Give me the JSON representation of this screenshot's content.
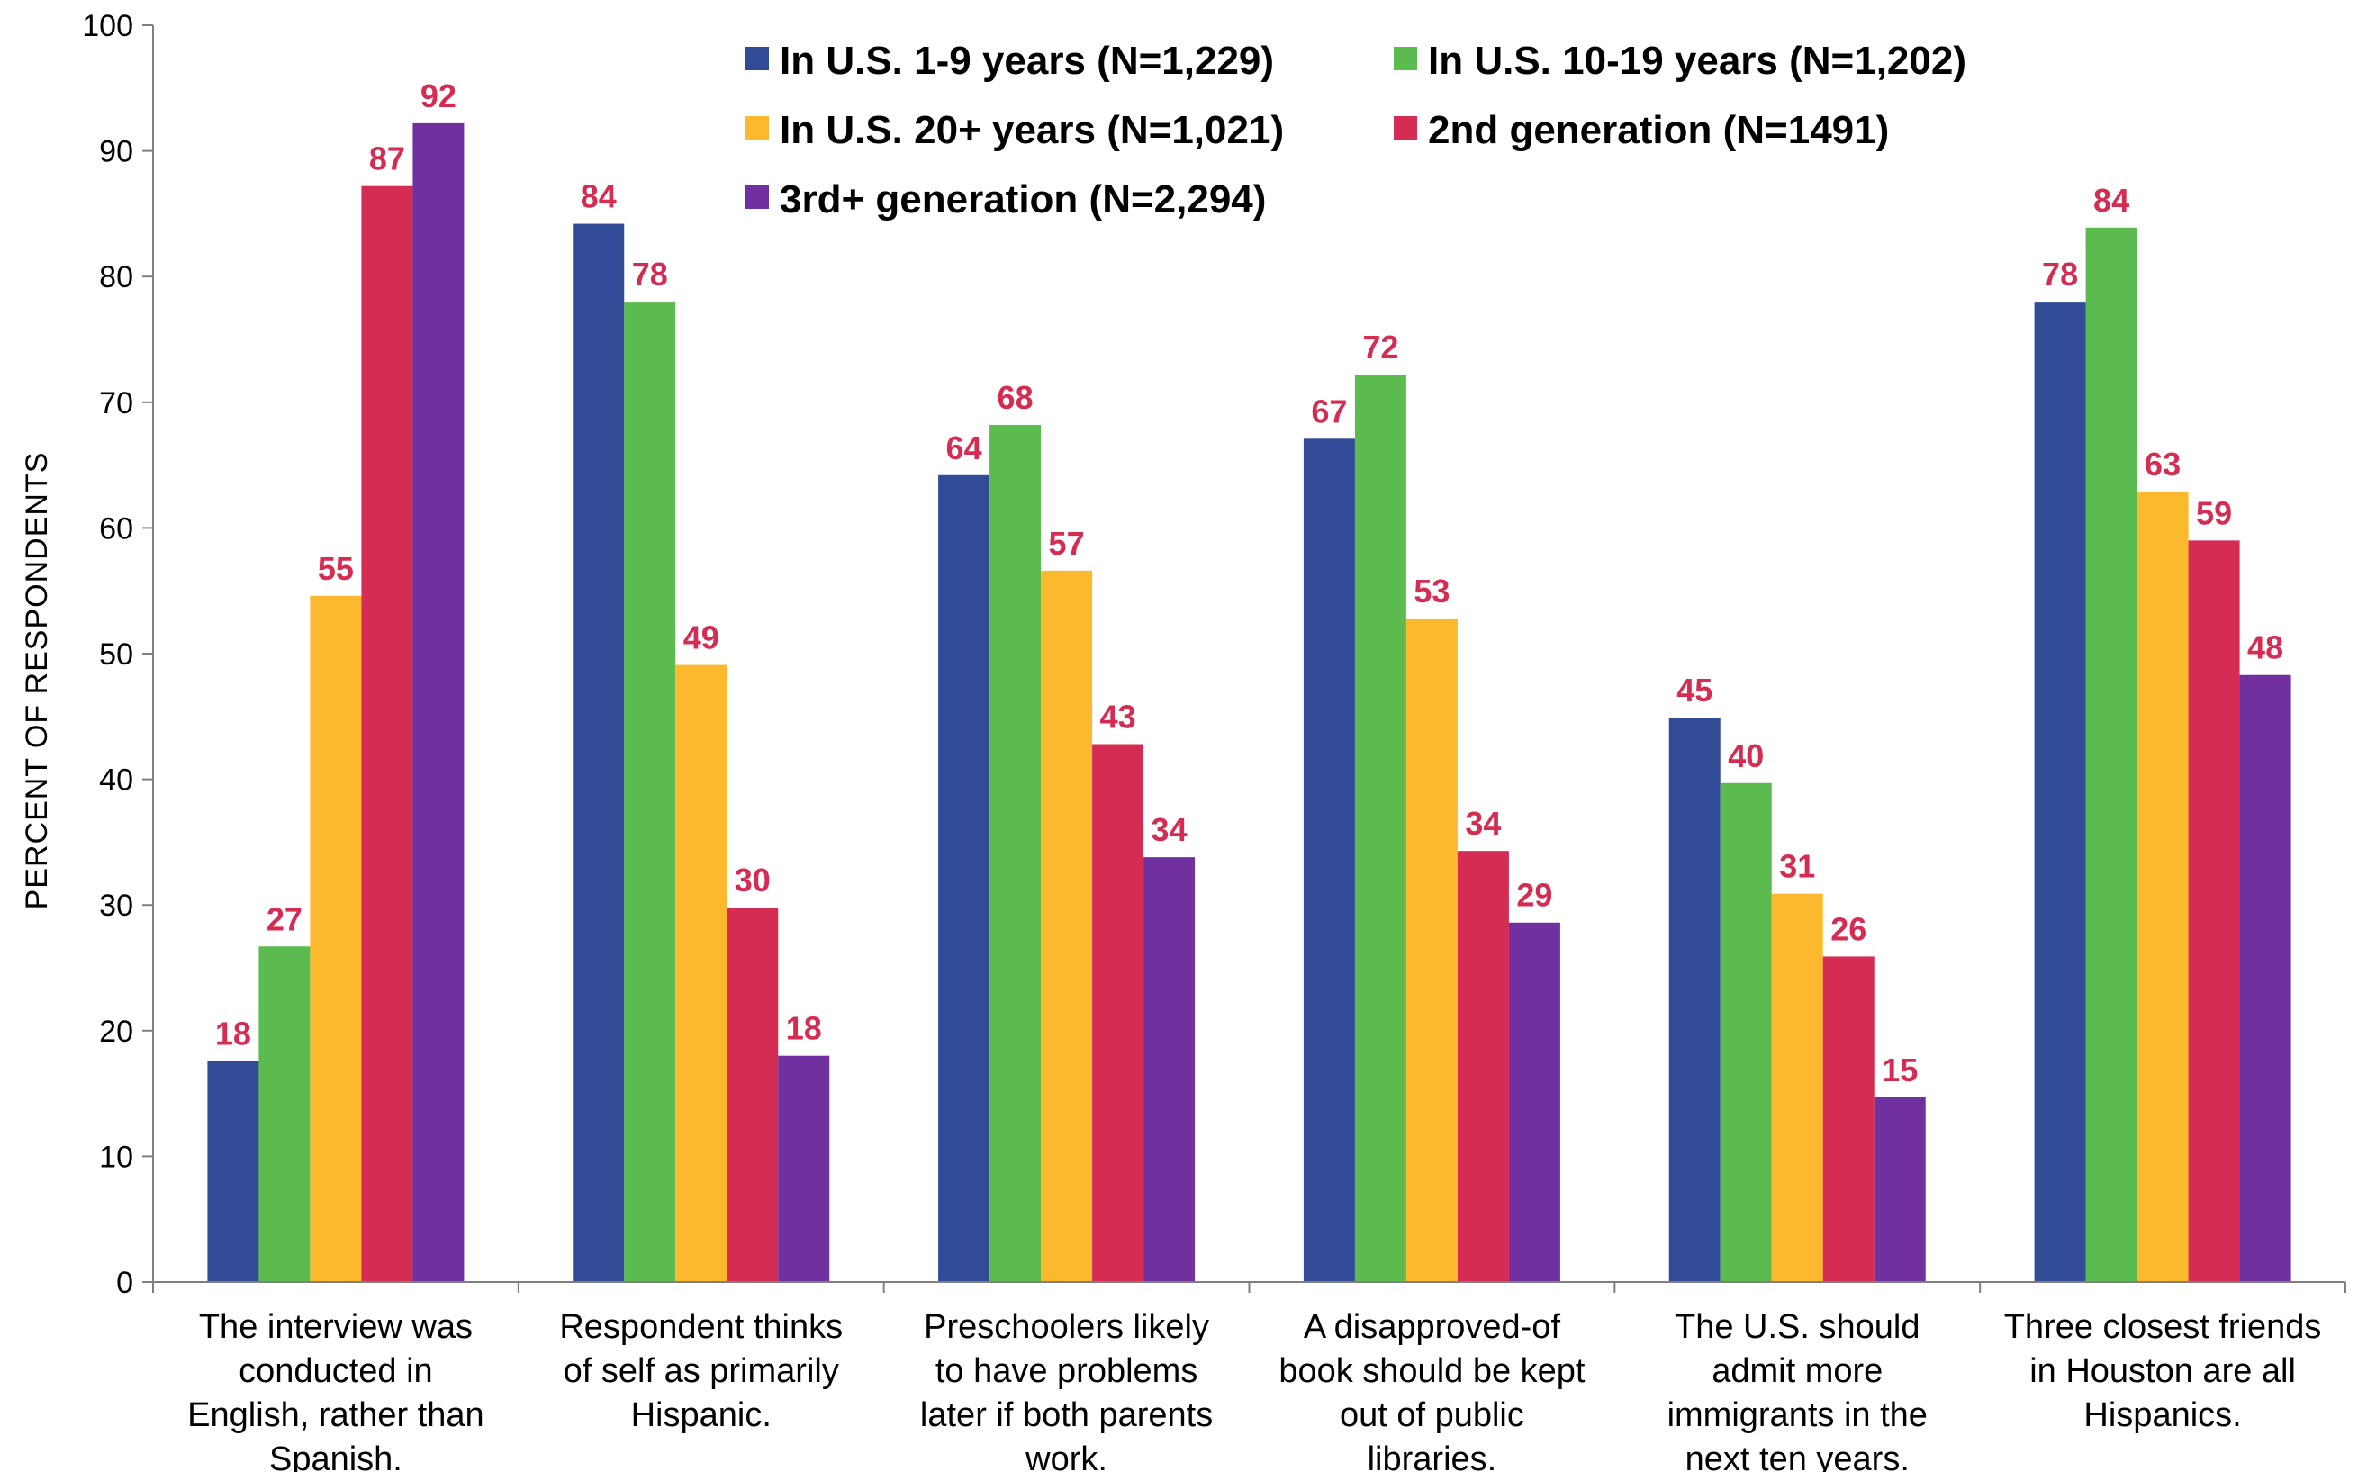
{
  "chart_data": {
    "type": "bar",
    "title": "",
    "xlabel": "",
    "ylabel": "PERCENT OF RESPONDENTS",
    "ylim": [
      0,
      100
    ],
    "yticks": [
      0,
      10,
      20,
      30,
      40,
      50,
      60,
      70,
      80,
      90,
      100
    ],
    "grid": false,
    "legend_position": "top-center",
    "label_color": "#D42C52",
    "categories": [
      [
        "The interview was",
        "conducted in",
        "English, rather than",
        "Spanish."
      ],
      [
        "Respondent thinks",
        "of self as primarily",
        "Hispanic."
      ],
      [
        "Preschoolers likely",
        "to have problems",
        "later if both parents",
        "work."
      ],
      [
        "A disapproved-of",
        "book should be kept",
        "out of public",
        "libraries."
      ],
      [
        "The U.S. should",
        "admit more",
        "immigrants in the",
        "next ten years."
      ],
      [
        "Three closest friends",
        "in Houston are all",
        "Hispanics."
      ]
    ],
    "series": [
      {
        "name": "In U.S. 1-9 years (N=1,229)",
        "color": "#314B96",
        "values": [
          17.6,
          84.2,
          64.2,
          67.1,
          44.9,
          78.0
        ],
        "labels": [
          "18",
          "84",
          "64",
          "67",
          "45",
          "78"
        ]
      },
      {
        "name": "In U.S. 10-19 years (N=1,202)",
        "color": "#5BBB4F",
        "values": [
          26.7,
          78.0,
          68.2,
          72.2,
          39.7,
          83.9
        ],
        "labels": [
          "27",
          "78",
          "68",
          "72",
          "40",
          "84"
        ]
      },
      {
        "name": "In U.S. 20+ years (N=1,021)",
        "color": "#FDB92E",
        "values": [
          54.6,
          49.1,
          56.6,
          52.8,
          30.9,
          62.9
        ],
        "labels": [
          "55",
          "49",
          "57",
          "53",
          "31",
          "63"
        ]
      },
      {
        "name": "2nd generation (N=1491)",
        "color": "#D42C52",
        "values": [
          87.2,
          29.8,
          42.8,
          34.3,
          25.9,
          59.0
        ],
        "labels": [
          "87",
          "30",
          "43",
          "34",
          "26",
          "59"
        ]
      },
      {
        "name": "3rd+ generation (N=2,294)",
        "color": "#7030A0",
        "values": [
          92.2,
          18.0,
          33.8,
          28.6,
          14.7,
          48.3
        ],
        "labels": [
          "92",
          "18",
          "34",
          "29",
          "15",
          "48"
        ]
      }
    ]
  }
}
